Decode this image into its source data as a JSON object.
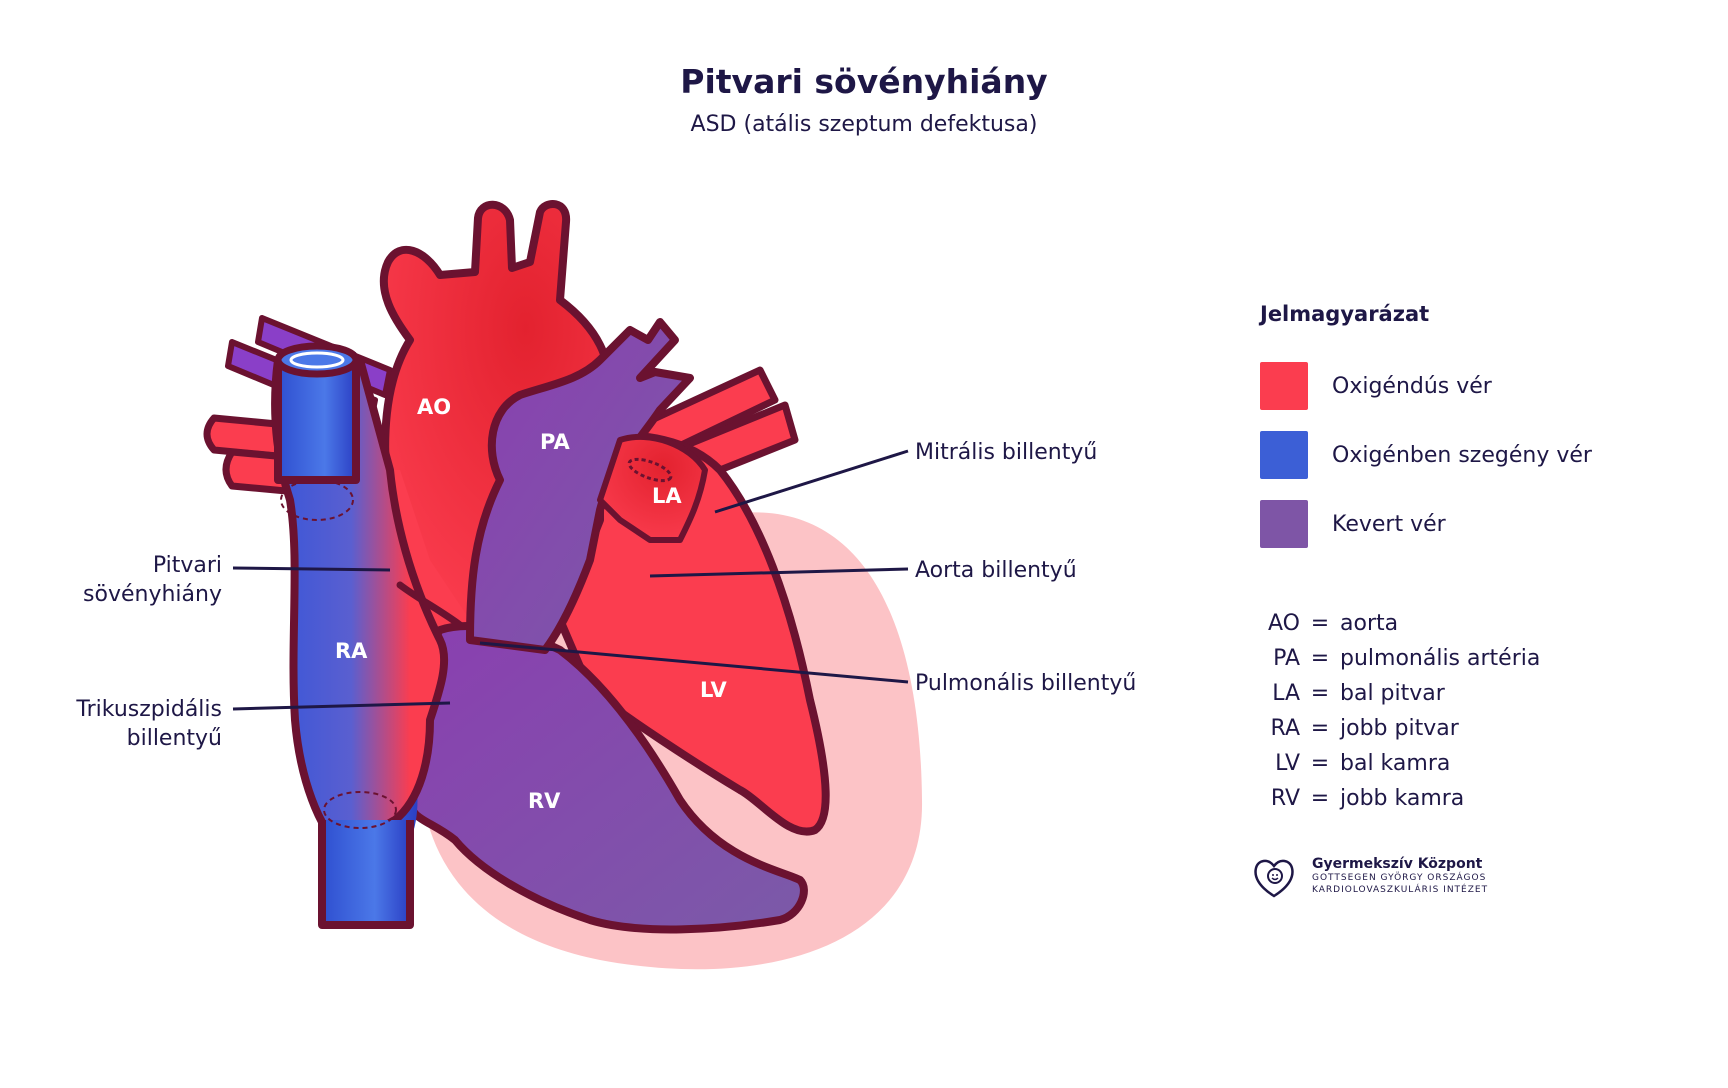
{
  "title": "Pitvari sövényhiány",
  "subtitle": "ASD (atális szeptum defektusa)",
  "chambers": {
    "ao": "AO",
    "pa": "PA",
    "la": "LA",
    "ra": "RA",
    "lv": "LV",
    "rv": "RV"
  },
  "callouts": {
    "mitral": "Mitrális billentyű",
    "aortic": "Aorta billentyű",
    "pulmonary": "Pulmonális billentyű",
    "asd_line1": "Pitvari",
    "asd_line2": "sövényhiány",
    "tricuspid_line1": "Trikuszpidális",
    "tricuspid_line2": "billentyű"
  },
  "legend": {
    "title": "Jelmagyarázat",
    "items": [
      {
        "label": "Oxigéndús vér",
        "color": "#fb3d4f"
      },
      {
        "label": "Oxigénben szegény vér",
        "color": "#3c5fd6"
      },
      {
        "label": "Kevert vér",
        "color": "#7e55a6"
      }
    ]
  },
  "abbreviations": [
    {
      "key": "AO",
      "eq": "=",
      "value": "aorta"
    },
    {
      "key": "PA",
      "eq": "=",
      "value": "pulmonális artéria"
    },
    {
      "key": "LA",
      "eq": "=",
      "value": "bal pitvar"
    },
    {
      "key": "RA",
      "eq": "=",
      "value": "jobb pitvar"
    },
    {
      "key": "LV",
      "eq": "=",
      "value": "bal kamra"
    },
    {
      "key": "RV",
      "eq": "=",
      "value": "jobb kamra"
    }
  ],
  "logo": {
    "name": "Gyermekszív Központ",
    "sub1": "GOTTSEGEN GYÖRGY ORSZÁGOS",
    "sub2": "KARDIOLOVASZKULÁRIS INTÉZET",
    "icon": "heart-child-icon"
  },
  "colors": {
    "oxygenated": "#fb3d4f",
    "deoxygenated": "#3c5fd6",
    "mixed": "#7e55a6",
    "outline": "#6b1230",
    "pericardium": "#fcc3c6",
    "text": "#1e1746"
  }
}
